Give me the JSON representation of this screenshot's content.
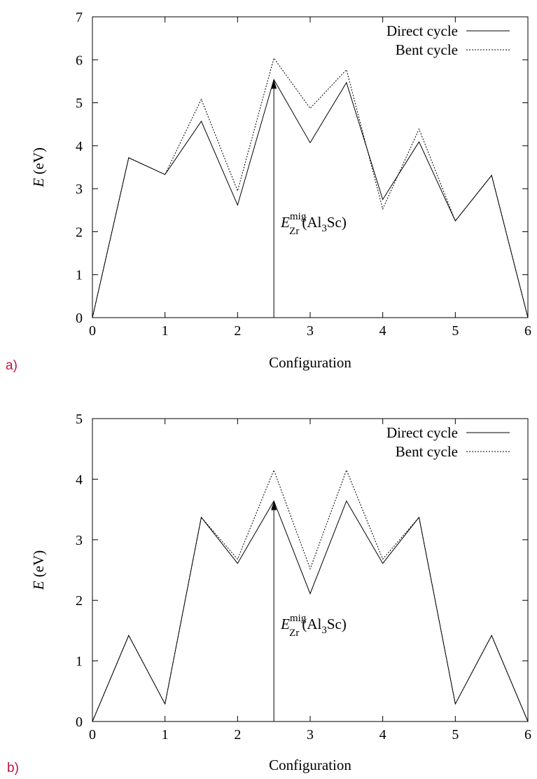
{
  "colors": {
    "axis": "#000000",
    "panel_label": "#c0143c"
  },
  "chart_data": [
    {
      "panel_label": "a)",
      "type": "line",
      "xlabel": "Configuration",
      "ylabel_italic": "E",
      "ylabel_unit": "(eV)",
      "xlim": [
        0,
        6
      ],
      "ylim": [
        0,
        7
      ],
      "xticks": [
        "0",
        "1",
        "2",
        "3",
        "4",
        "5",
        "6"
      ],
      "yticks": [
        "0",
        "1",
        "2",
        "3",
        "4",
        "5",
        "6",
        "7"
      ],
      "legend_position": "top-right",
      "x": [
        0,
        0.5,
        1,
        1.5,
        2,
        2.5,
        3,
        3.5,
        4,
        4.5,
        5,
        5.5,
        6
      ],
      "series": [
        {
          "name": "Direct cycle",
          "style": "solid",
          "values": [
            0,
            3.72,
            3.33,
            4.57,
            2.62,
            5.54,
            4.07,
            5.47,
            2.75,
            4.09,
            2.25,
            3.31,
            0
          ]
        },
        {
          "name": "Bent cycle",
          "style": "dotted",
          "values": [
            0,
            3.72,
            3.33,
            5.08,
            2.95,
            6.04,
            4.87,
            5.77,
            2.53,
            4.39,
            2.25,
            3.31,
            0
          ]
        }
      ],
      "annotation": {
        "x": 2.5,
        "y_from": 0,
        "y_to": 5.54,
        "base": "E",
        "sup": "mig",
        "sub": "Zr",
        "tail_a": "(Al",
        "tail_sub": "3",
        "tail_b": "Sc)",
        "label_x": 2.5,
        "label_y": 2.2
      }
    },
    {
      "panel_label": "b)",
      "type": "line",
      "xlabel": "Configuration",
      "ylabel_italic": "E",
      "ylabel_unit": "(eV)",
      "xlim": [
        0,
        6
      ],
      "ylim": [
        0,
        5
      ],
      "xticks": [
        "0",
        "1",
        "2",
        "3",
        "4",
        "5",
        "6"
      ],
      "yticks": [
        "0",
        "1",
        "2",
        "3",
        "4",
        "5"
      ],
      "legend_position": "top-right",
      "x": [
        0,
        0.5,
        1,
        1.5,
        2,
        2.5,
        3,
        3.5,
        4,
        4.5,
        5,
        5.5,
        6
      ],
      "series": [
        {
          "name": "Direct cycle",
          "style": "solid",
          "values": [
            0,
            1.42,
            0.29,
            3.37,
            2.61,
            3.64,
            2.11,
            3.64,
            2.61,
            3.37,
            0.29,
            1.42,
            0
          ]
        },
        {
          "name": "Bent cycle",
          "style": "dotted",
          "values": [
            0,
            1.42,
            0.29,
            3.37,
            2.68,
            4.15,
            2.52,
            4.15,
            2.68,
            3.37,
            0.29,
            1.42,
            0
          ]
        }
      ],
      "annotation": {
        "x": 2.5,
        "y_from": 0,
        "y_to": 3.64,
        "base": "E",
        "sup": "mig",
        "sub": "Zr",
        "tail_a": "(Al",
        "tail_sub": "3",
        "tail_b": "Sc)",
        "label_x": 2.5,
        "label_y": 1.6
      }
    }
  ]
}
